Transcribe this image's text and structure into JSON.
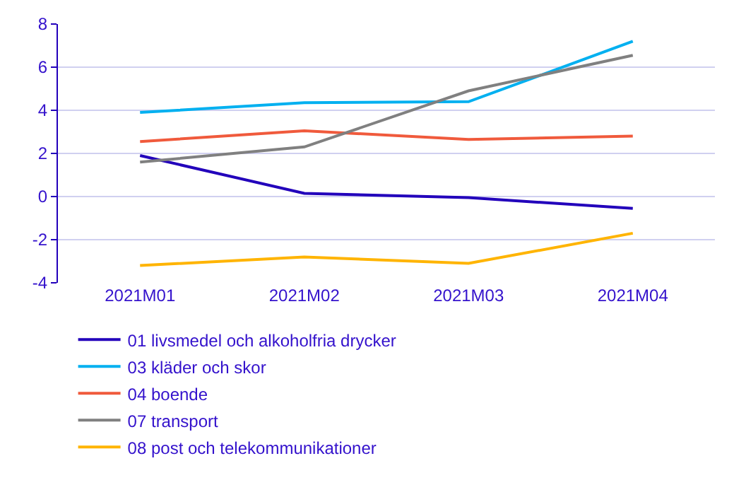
{
  "chart_data": {
    "type": "line",
    "categories": [
      "2021M01",
      "2021M02",
      "2021M03",
      "2021M04"
    ],
    "series": [
      {
        "name": "01 livsmedel och alkoholfria drycker",
        "color": "#2200bb",
        "values": [
          1.9,
          0.15,
          -0.05,
          -0.55
        ]
      },
      {
        "name": "03 kläder och skor",
        "color": "#00b0f0",
        "values": [
          3.9,
          4.35,
          4.4,
          7.2
        ]
      },
      {
        "name": "04 boende",
        "color": "#f05a3c",
        "values": [
          2.55,
          3.05,
          2.65,
          2.8
        ]
      },
      {
        "name": "07 transport",
        "color": "#808080",
        "values": [
          1.6,
          2.3,
          4.9,
          6.55
        ]
      },
      {
        "name": "08 post och telekommunikationer",
        "color": "#ffb400",
        "values": [
          -3.2,
          -2.8,
          -3.1,
          -1.7
        ]
      }
    ],
    "ylim": [
      -4,
      8
    ],
    "yticks": [
      -4,
      -2,
      0,
      2,
      4,
      6,
      8
    ],
    "grid": "y",
    "legend": "bottom",
    "marker": "none",
    "line_style": "solid"
  }
}
